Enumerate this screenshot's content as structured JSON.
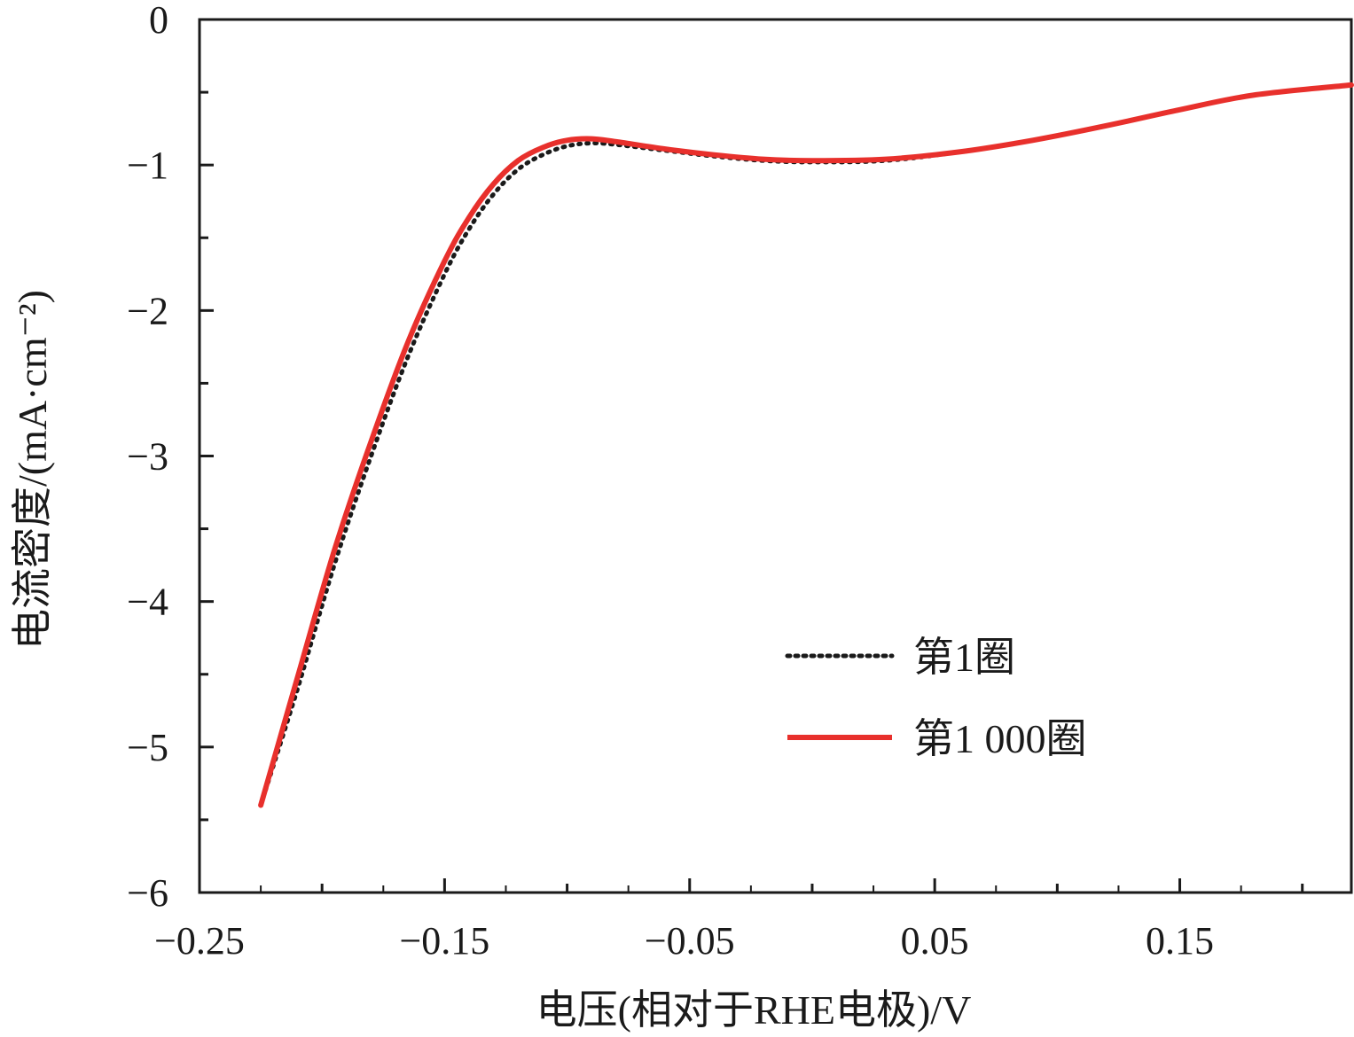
{
  "chart_data": {
    "type": "line",
    "title": "",
    "xlabel": "电压(相对于RHE电极)/V",
    "ylabel": "电流密度/(mA·cm⁻²)",
    "xlim": [
      -0.25,
      0.22
    ],
    "ylim": [
      -6,
      0
    ],
    "x_ticks": [
      -0.25,
      -0.15,
      -0.05,
      0.05,
      0.15
    ],
    "x_tick_labels": [
      "−0.25",
      "−0.15",
      "−0.05",
      "0.05",
      "0.15"
    ],
    "y_ticks": [
      0,
      -1,
      -2,
      -3,
      -4,
      -5,
      -6
    ],
    "y_tick_labels": [
      "0",
      "−1",
      "−2",
      "−3",
      "−4",
      "−5",
      "−6"
    ],
    "grid": false,
    "legend_position": "bottom-right",
    "series": [
      {
        "name": "第1圈",
        "color": "#1a1a1a",
        "style": "dotted",
        "x": [
          -0.225,
          -0.21,
          -0.195,
          -0.18,
          -0.165,
          -0.15,
          -0.14,
          -0.13,
          -0.12,
          -0.11,
          -0.1,
          -0.09,
          -0.08,
          -0.06,
          -0.04,
          -0.02,
          0.0,
          0.03,
          0.06,
          0.09,
          0.12,
          0.15,
          0.18,
          0.22
        ],
        "y": [
          -5.4,
          -4.6,
          -3.75,
          -3.0,
          -2.32,
          -1.75,
          -1.44,
          -1.2,
          -1.03,
          -0.93,
          -0.87,
          -0.85,
          -0.86,
          -0.9,
          -0.94,
          -0.97,
          -0.98,
          -0.97,
          -0.91,
          -0.83,
          -0.73,
          -0.62,
          -0.52,
          -0.45
        ]
      },
      {
        "name": "第1 000圈",
        "color": "#e8302c",
        "style": "solid",
        "x": [
          -0.225,
          -0.21,
          -0.195,
          -0.18,
          -0.165,
          -0.15,
          -0.14,
          -0.13,
          -0.12,
          -0.11,
          -0.1,
          -0.09,
          -0.08,
          -0.06,
          -0.04,
          -0.02,
          0.0,
          0.03,
          0.06,
          0.09,
          0.12,
          0.15,
          0.18,
          0.22
        ],
        "y": [
          -5.4,
          -4.52,
          -3.65,
          -2.9,
          -2.22,
          -1.66,
          -1.36,
          -1.13,
          -0.97,
          -0.88,
          -0.83,
          -0.82,
          -0.84,
          -0.89,
          -0.93,
          -0.96,
          -0.97,
          -0.96,
          -0.91,
          -0.83,
          -0.73,
          -0.62,
          -0.52,
          -0.45
        ]
      }
    ]
  }
}
